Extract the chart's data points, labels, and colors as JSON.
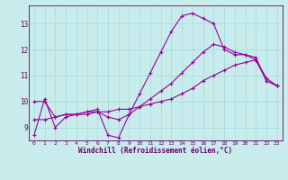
{
  "xlabel": "Windchill (Refroidissement éolien,°C)",
  "bg_color": "#c8ecec",
  "line_color": "#990099",
  "grid_color": "#aadddd",
  "axis_color": "#660066",
  "xlim": [
    -0.5,
    23.5
  ],
  "ylim": [
    8.5,
    13.7
  ],
  "xticks": [
    0,
    1,
    2,
    3,
    4,
    5,
    6,
    7,
    8,
    9,
    10,
    11,
    12,
    13,
    14,
    15,
    16,
    17,
    18,
    19,
    20,
    21,
    22,
    23
  ],
  "yticks": [
    9,
    10,
    11,
    12,
    13
  ],
  "curve1_x": [
    0,
    1,
    2,
    3,
    4,
    5,
    6,
    7,
    8,
    9,
    10,
    11,
    12,
    13,
    14,
    15,
    16,
    17,
    18,
    19,
    20,
    21,
    22,
    23
  ],
  "curve1_y": [
    8.7,
    10.1,
    9.0,
    9.4,
    9.5,
    9.6,
    9.7,
    8.7,
    8.6,
    9.5,
    10.3,
    11.1,
    11.9,
    12.7,
    13.3,
    13.4,
    13.2,
    13.0,
    12.0,
    11.8,
    11.8,
    11.6,
    10.8,
    10.6
  ],
  "curve2_x": [
    0,
    1,
    2,
    3,
    4,
    5,
    6,
    7,
    8,
    9,
    10,
    11,
    12,
    13,
    14,
    15,
    16,
    17,
    18,
    19,
    20,
    21,
    22,
    23
  ],
  "curve2_y": [
    10.0,
    10.0,
    9.4,
    9.5,
    9.5,
    9.6,
    9.6,
    9.6,
    9.7,
    9.7,
    9.8,
    9.9,
    10.0,
    10.1,
    10.3,
    10.5,
    10.8,
    11.0,
    11.2,
    11.4,
    11.5,
    11.6,
    10.9,
    10.6
  ],
  "curve3_x": [
    0,
    1,
    2,
    3,
    4,
    5,
    6,
    7,
    8,
    9,
    10,
    11,
    12,
    13,
    14,
    15,
    16,
    17,
    18,
    19,
    20,
    21,
    22,
    23
  ],
  "curve3_y": [
    9.3,
    9.3,
    9.4,
    9.5,
    9.5,
    9.5,
    9.6,
    9.4,
    9.3,
    9.5,
    9.8,
    10.1,
    10.4,
    10.7,
    11.1,
    11.5,
    11.9,
    12.2,
    12.1,
    11.9,
    11.8,
    11.7,
    10.8,
    10.6
  ]
}
